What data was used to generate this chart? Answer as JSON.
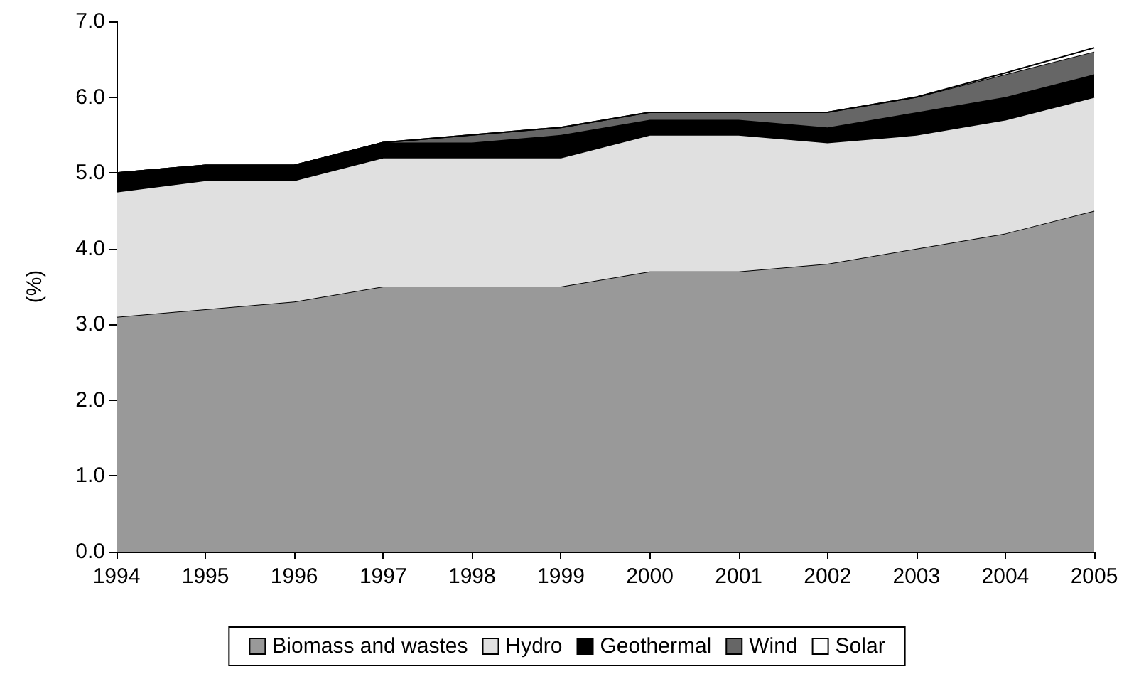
{
  "chart_data": {
    "type": "area",
    "stacked": true,
    "ylabel": "(%)",
    "categories": [
      "1994",
      "1995",
      "1996",
      "1997",
      "1998",
      "1999",
      "2000",
      "2001",
      "2002",
      "2003",
      "2004",
      "2005"
    ],
    "series": [
      {
        "name": "Biomass and wastes",
        "color": "#999999",
        "values": [
          3.1,
          3.2,
          3.3,
          3.5,
          3.5,
          3.5,
          3.7,
          3.7,
          3.8,
          4.0,
          4.2,
          4.5
        ]
      },
      {
        "name": "Hydro",
        "color": "#e0e0e0",
        "values": [
          1.65,
          1.7,
          1.6,
          1.7,
          1.7,
          1.7,
          1.8,
          1.8,
          1.6,
          1.5,
          1.5,
          1.5
        ]
      },
      {
        "name": "Geothermal",
        "color": "#000000",
        "values": [
          0.25,
          0.2,
          0.2,
          0.2,
          0.2,
          0.3,
          0.2,
          0.2,
          0.2,
          0.3,
          0.3,
          0.3
        ]
      },
      {
        "name": "Wind",
        "color": "#666666",
        "values": [
          0,
          0,
          0,
          0,
          0.1,
          0.1,
          0.1,
          0.1,
          0.2,
          0.2,
          0.3,
          0.3
        ]
      },
      {
        "name": "Solar",
        "color": "#ffffff",
        "values": [
          0,
          0,
          0,
          0,
          0,
          0,
          0,
          0,
          0,
          0,
          0.02,
          0.05
        ]
      }
    ],
    "ylim": [
      0,
      7
    ],
    "yticks": [
      {
        "value": 0,
        "label": "0.0"
      },
      {
        "value": 1,
        "label": "1.0"
      },
      {
        "value": 2,
        "label": "2.0"
      },
      {
        "value": 3,
        "label": "3.0"
      },
      {
        "value": 4,
        "label": "4.0"
      },
      {
        "value": 5,
        "label": "5.0"
      },
      {
        "value": 6,
        "label": "6.0"
      },
      {
        "value": 7,
        "label": "7.0"
      }
    ],
    "grid": false,
    "legend": "bottom",
    "marker": "none"
  }
}
